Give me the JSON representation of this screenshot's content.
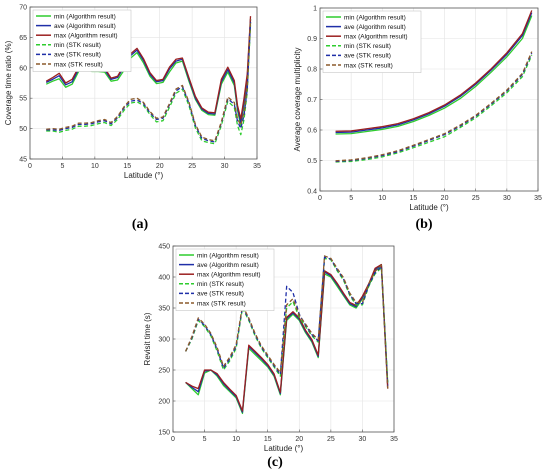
{
  "chart_data": [
    {
      "type": "line",
      "panel_label": "(a)",
      "xlabel": "Latitude (°)",
      "ylabel": "Coverage time ratio (%)",
      "xlim": [
        0,
        35
      ],
      "ylim": [
        45,
        70
      ],
      "xticks": [
        0,
        5,
        10,
        15,
        20,
        25,
        30,
        35
      ],
      "yticks": [
        45,
        50,
        55,
        60,
        65,
        70
      ],
      "grid": true,
      "legend_position": "top-left",
      "x": [
        2.5,
        3.5,
        4.5,
        5.5,
        6.5,
        7.5,
        8.5,
        9.5,
        10.5,
        11.5,
        12.5,
        13.5,
        14.5,
        15.5,
        16.5,
        17.5,
        18.5,
        19.5,
        20.5,
        21.5,
        22.5,
        23.5,
        24.5,
        25.5,
        26.5,
        27.5,
        28.5,
        29.5,
        30.5,
        31.5,
        32,
        32.5,
        33,
        33.5,
        34
      ],
      "series": [
        {
          "name": "min (Algorithm result)",
          "color": "#2ecc2e",
          "dash": "solid",
          "values": [
            57.3,
            57.8,
            58.2,
            56.8,
            57.3,
            59.4,
            59.9,
            59.4,
            59.4,
            59.3,
            57.8,
            58.0,
            59.6,
            61.6,
            62.5,
            60.8,
            58.6,
            57.4,
            57.6,
            59.3,
            60.8,
            61.1,
            57.8,
            54.8,
            53.0,
            52.3,
            52.2,
            57.3,
            59.3,
            57.1,
            53.0,
            50.4,
            54.0,
            58.0,
            67.5
          ]
        },
        {
          "name": "ave (Algorithm result)",
          "color": "#1f2fa8",
          "dash": "solid",
          "values": [
            57.6,
            58.1,
            58.7,
            57.2,
            57.7,
            59.8,
            60.3,
            59.9,
            59.8,
            59.7,
            58.1,
            58.4,
            60.1,
            62.0,
            62.9,
            61.2,
            58.9,
            57.7,
            57.9,
            59.8,
            61.1,
            61.4,
            58.1,
            55.0,
            53.2,
            52.5,
            52.4,
            57.7,
            59.7,
            57.5,
            53.4,
            51.0,
            54.5,
            58.5,
            68.0
          ]
        },
        {
          "name": "max (Algorithm result)",
          "color": "#9b2020",
          "dash": "solid",
          "values": [
            57.8,
            58.4,
            59.1,
            57.5,
            58.1,
            60.1,
            60.7,
            60.2,
            60.1,
            60.0,
            58.3,
            58.6,
            60.5,
            62.3,
            63.2,
            61.5,
            59.2,
            57.9,
            58.1,
            60.1,
            61.4,
            61.6,
            58.4,
            55.3,
            53.4,
            52.7,
            52.6,
            58.1,
            60.1,
            57.9,
            53.8,
            51.6,
            55.0,
            59.0,
            68.5
          ]
        },
        {
          "name": "min (STK result)",
          "color": "#2ecc2e",
          "dash": "dashed",
          "values": [
            49.6,
            49.6,
            49.4,
            49.7,
            49.9,
            50.4,
            50.4,
            50.5,
            50.8,
            51.0,
            50.5,
            51.5,
            53.0,
            54.2,
            54.4,
            53.8,
            52.3,
            51.1,
            51.3,
            53.5,
            55.8,
            56.5,
            53.8,
            50.1,
            48.0,
            47.7,
            47.5,
            50.5,
            54.5,
            53.5,
            50.5,
            49.0,
            51.5,
            56.0,
            67.0
          ]
        },
        {
          "name": "ave (STK result)",
          "color": "#1f2fa8",
          "dash": "dashed",
          "values": [
            49.8,
            49.8,
            49.7,
            50.0,
            50.2,
            50.7,
            50.7,
            50.8,
            51.1,
            51.3,
            50.8,
            51.8,
            53.4,
            54.5,
            54.7,
            54.1,
            52.6,
            51.5,
            51.7,
            53.9,
            56.2,
            56.9,
            54.2,
            50.5,
            48.4,
            48.0,
            47.8,
            50.9,
            54.9,
            54.0,
            51.2,
            50.0,
            52.2,
            56.5,
            67.5
          ]
        },
        {
          "name": "max (STK result)",
          "color": "#8b5a2b",
          "dash": "dashed",
          "values": [
            49.9,
            50.0,
            49.9,
            50.2,
            50.4,
            50.9,
            50.9,
            51.0,
            51.3,
            51.5,
            51.0,
            52.0,
            53.6,
            54.8,
            55.0,
            54.3,
            52.8,
            51.7,
            51.9,
            54.1,
            56.5,
            57.1,
            54.4,
            50.7,
            48.6,
            48.2,
            48.0,
            51.1,
            55.2,
            54.3,
            51.6,
            50.6,
            52.7,
            57.0,
            68.0
          ]
        }
      ]
    },
    {
      "type": "line",
      "panel_label": "(b)",
      "xlabel": "Latitude (°)",
      "ylabel": "Average coverage multiplicity",
      "xlim": [
        0,
        35
      ],
      "ylim": [
        0.4,
        1.0
      ],
      "xticks": [
        0,
        5,
        10,
        15,
        20,
        25,
        30,
        35
      ],
      "yticks": [
        0.4,
        0.5,
        0.6,
        0.7,
        0.8,
        0.9,
        1.0
      ],
      "grid": true,
      "legend_position": "top-left",
      "x": [
        2.5,
        5,
        7.5,
        10,
        12.5,
        15,
        17.5,
        20,
        22.5,
        25,
        27.5,
        30,
        32.5,
        34
      ],
      "series": [
        {
          "name": "min (Algorithm result)",
          "color": "#2ecc2e",
          "dash": "solid",
          "values": [
            0.587,
            0.588,
            0.595,
            0.602,
            0.612,
            0.628,
            0.648,
            0.672,
            0.703,
            0.743,
            0.79,
            0.84,
            0.9,
            0.975
          ]
        },
        {
          "name": "ave (Algorithm result)",
          "color": "#1f2fa8",
          "dash": "solid",
          "values": [
            0.592,
            0.593,
            0.6,
            0.607,
            0.617,
            0.633,
            0.653,
            0.678,
            0.71,
            0.75,
            0.797,
            0.848,
            0.91,
            0.985
          ]
        },
        {
          "name": "max (Algorithm result)",
          "color": "#9b2020",
          "dash": "solid",
          "values": [
            0.596,
            0.597,
            0.604,
            0.611,
            0.621,
            0.637,
            0.657,
            0.682,
            0.714,
            0.754,
            0.801,
            0.853,
            0.916,
            0.992
          ]
        },
        {
          "name": "min (STK result)",
          "color": "#2ecc2e",
          "dash": "dashed",
          "values": [
            0.495,
            0.497,
            0.503,
            0.512,
            0.525,
            0.542,
            0.56,
            0.578,
            0.608,
            0.64,
            0.68,
            0.722,
            0.775,
            0.845
          ]
        },
        {
          "name": "ave (STK result)",
          "color": "#1f2fa8",
          "dash": "dashed",
          "values": [
            0.497,
            0.5,
            0.507,
            0.516,
            0.529,
            0.547,
            0.566,
            0.585,
            0.613,
            0.645,
            0.685,
            0.728,
            0.782,
            0.852
          ]
        },
        {
          "name": "max (STK result)",
          "color": "#8b5a2b",
          "dash": "dashed",
          "values": [
            0.499,
            0.502,
            0.509,
            0.519,
            0.532,
            0.55,
            0.569,
            0.588,
            0.616,
            0.648,
            0.688,
            0.731,
            0.786,
            0.857
          ]
        }
      ]
    },
    {
      "type": "line",
      "panel_label": "(c)",
      "xlabel": "Latitude (°)",
      "ylabel": "Revisit time (s)",
      "xlim": [
        0,
        35
      ],
      "ylim": [
        150,
        450
      ],
      "xticks": [
        0,
        5,
        10,
        15,
        20,
        25,
        30,
        35
      ],
      "yticks": [
        150,
        200,
        250,
        300,
        350,
        400,
        450
      ],
      "grid": true,
      "legend_position": "top-left",
      "x": [
        2,
        3,
        4,
        5,
        6,
        7,
        8,
        9,
        10,
        11,
        12,
        13,
        14,
        15,
        16,
        17,
        18,
        19,
        20,
        21,
        22,
        23,
        24,
        25,
        26,
        27,
        28,
        29,
        30,
        31,
        32,
        33,
        34
      ],
      "series": [
        {
          "name": "min (Algorithm result)",
          "color": "#2ecc2e",
          "dash": "solid",
          "values": [
            230,
            220,
            210,
            245,
            250,
            240,
            225,
            215,
            205,
            180,
            285,
            275,
            265,
            255,
            240,
            210,
            330,
            340,
            330,
            310,
            295,
            270,
            405,
            400,
            385,
            370,
            355,
            350,
            365,
            385,
            410,
            420,
            230
          ]
        },
        {
          "name": "ave (Algorithm result)",
          "color": "#1f2fa8",
          "dash": "solid",
          "values": [
            230,
            222,
            215,
            248,
            250,
            242,
            228,
            217,
            207,
            182,
            288,
            278,
            268,
            257,
            242,
            212,
            333,
            342,
            332,
            312,
            297,
            272,
            408,
            402,
            388,
            372,
            357,
            352,
            367,
            387,
            412,
            420,
            225
          ]
        },
        {
          "name": "max (Algorithm result)",
          "color": "#9b2020",
          "dash": "solid",
          "values": [
            230,
            224,
            220,
            250,
            250,
            244,
            230,
            219,
            209,
            184,
            290,
            280,
            270,
            259,
            244,
            214,
            335,
            344,
            334,
            314,
            299,
            274,
            410,
            404,
            390,
            374,
            359,
            354,
            369,
            389,
            414,
            420,
            220
          ]
        },
        {
          "name": "min (STK result)",
          "color": "#2ecc2e",
          "dash": "dashed",
          "values": [
            280,
            300,
            330,
            320,
            305,
            280,
            250,
            265,
            285,
            350,
            330,
            305,
            285,
            270,
            255,
            240,
            350,
            360,
            335,
            320,
            305,
            295,
            430,
            428,
            410,
            395,
            370,
            355,
            355,
            385,
            405,
            415,
            230
          ]
        },
        {
          "name": "ave (STK result)",
          "color": "#1f2fa8",
          "dash": "dashed",
          "values": [
            280,
            302,
            332,
            322,
            307,
            283,
            253,
            268,
            288,
            352,
            332,
            307,
            287,
            272,
            257,
            243,
            385,
            375,
            340,
            322,
            307,
            297,
            432,
            429,
            412,
            397,
            372,
            357,
            357,
            387,
            407,
            417,
            225
          ]
        },
        {
          "name": "max (STK result)",
          "color": "#8b5a2b",
          "dash": "dashed",
          "values": [
            280,
            304,
            334,
            324,
            309,
            286,
            256,
            271,
            291,
            354,
            334,
            309,
            289,
            274,
            259,
            246,
            355,
            365,
            338,
            324,
            309,
            299,
            434,
            430,
            414,
            399,
            374,
            359,
            359,
            389,
            409,
            419,
            220
          ]
        }
      ]
    }
  ]
}
